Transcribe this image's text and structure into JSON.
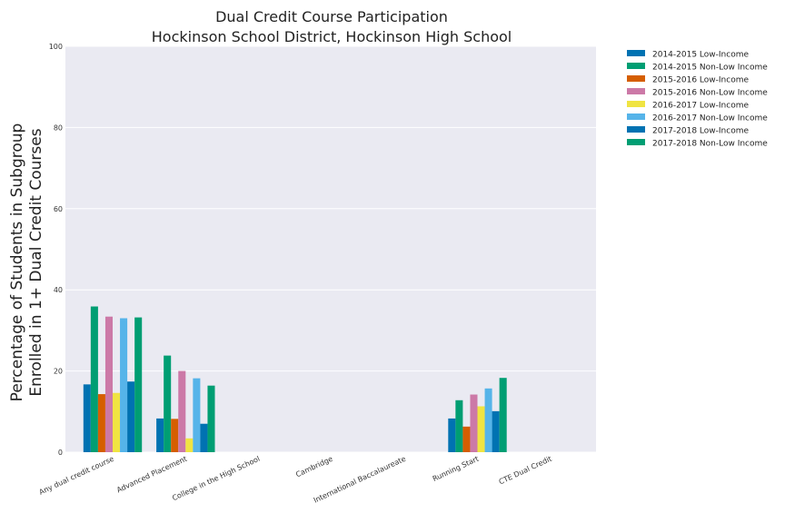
{
  "chart_data": {
    "type": "bar",
    "title": [
      "Dual Credit Course Participation",
      "Hockinson School District, Hockinson High School"
    ],
    "xlabel": "",
    "ylabel": [
      "Percentage of Students in Subgroup",
      "Enrolled in 1+ Dual Credit Courses"
    ],
    "ylim": [
      0,
      100
    ],
    "yticks": [
      0,
      20,
      40,
      60,
      80,
      100
    ],
    "grid": true,
    "legend_position": "top-right outside",
    "categories": [
      "Any dual credit course",
      "Advanced Placement",
      "College in the High School",
      "Cambridge",
      "International Baccalaureate",
      "Running Start",
      "CTE Dual Credit"
    ],
    "series": [
      {
        "name": "2014-2015 Low-Income",
        "color": "#0072b2",
        "values": [
          16.7,
          8.3,
          0,
          0,
          0,
          8.3,
          0
        ]
      },
      {
        "name": "2014-2015 Non-Low Income",
        "color": "#009e73",
        "values": [
          35.9,
          23.8,
          0,
          0,
          0,
          12.8,
          0
        ]
      },
      {
        "name": "2015-2016 Low-Income",
        "color": "#d55e00",
        "values": [
          14.3,
          8.2,
          0,
          0,
          0,
          6.3,
          0
        ]
      },
      {
        "name": "2015-2016 Non-Low Income",
        "color": "#cc79a7",
        "values": [
          33.4,
          20.0,
          0,
          0,
          0,
          14.2,
          0
        ]
      },
      {
        "name": "2016-2017 Low-Income",
        "color": "#f0e442",
        "values": [
          14.6,
          3.4,
          0,
          0,
          0,
          11.3,
          0
        ]
      },
      {
        "name": "2016-2017 Non-Low Income",
        "color": "#56b4e9",
        "values": [
          33.0,
          18.2,
          0,
          0,
          0,
          15.7,
          0
        ]
      },
      {
        "name": "2017-2018 Low-Income",
        "color": "#0072b2",
        "values": [
          17.4,
          7.0,
          0,
          0,
          0,
          10.1,
          0
        ]
      },
      {
        "name": "2017-2018 Non-Low Income",
        "color": "#009e73",
        "values": [
          33.2,
          16.4,
          0,
          0,
          0,
          18.3,
          0
        ]
      }
    ]
  }
}
